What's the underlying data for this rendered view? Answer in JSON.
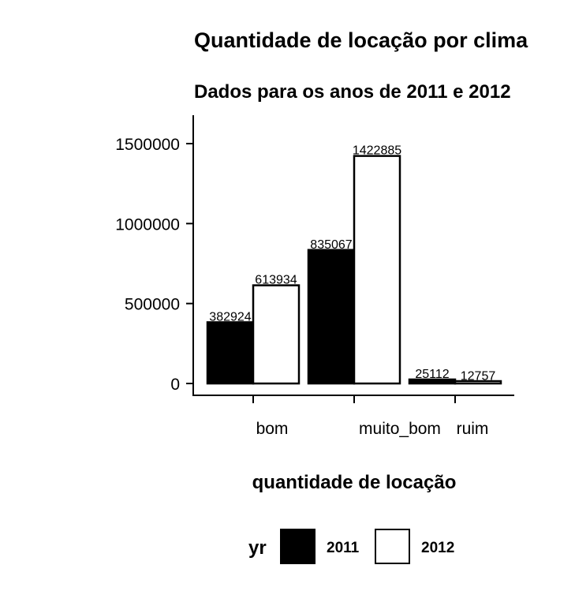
{
  "chart_data": {
    "type": "bar",
    "title": "Quantidade de locação por clima",
    "subtitle": "Dados para os anos de 2011 e 2012",
    "xlabel": "quantidade de locação",
    "categories": [
      "bom",
      "muito_bom",
      "ruim"
    ],
    "series": [
      {
        "name": "2011",
        "values": [
          382924,
          835067,
          25112
        ],
        "color": "#000000"
      },
      {
        "name": "2012",
        "values": [
          613934,
          1422885,
          12757
        ],
        "color": "#ffffff"
      }
    ],
    "ylim": [
      0,
      1500000
    ],
    "yticks": [
      0,
      500000,
      1000000,
      1500000
    ],
    "ytick_labels": [
      "0",
      "500000",
      "1000000",
      "1500000"
    ],
    "legend": {
      "title": "yr",
      "position": "bottom"
    },
    "grid": false
  }
}
